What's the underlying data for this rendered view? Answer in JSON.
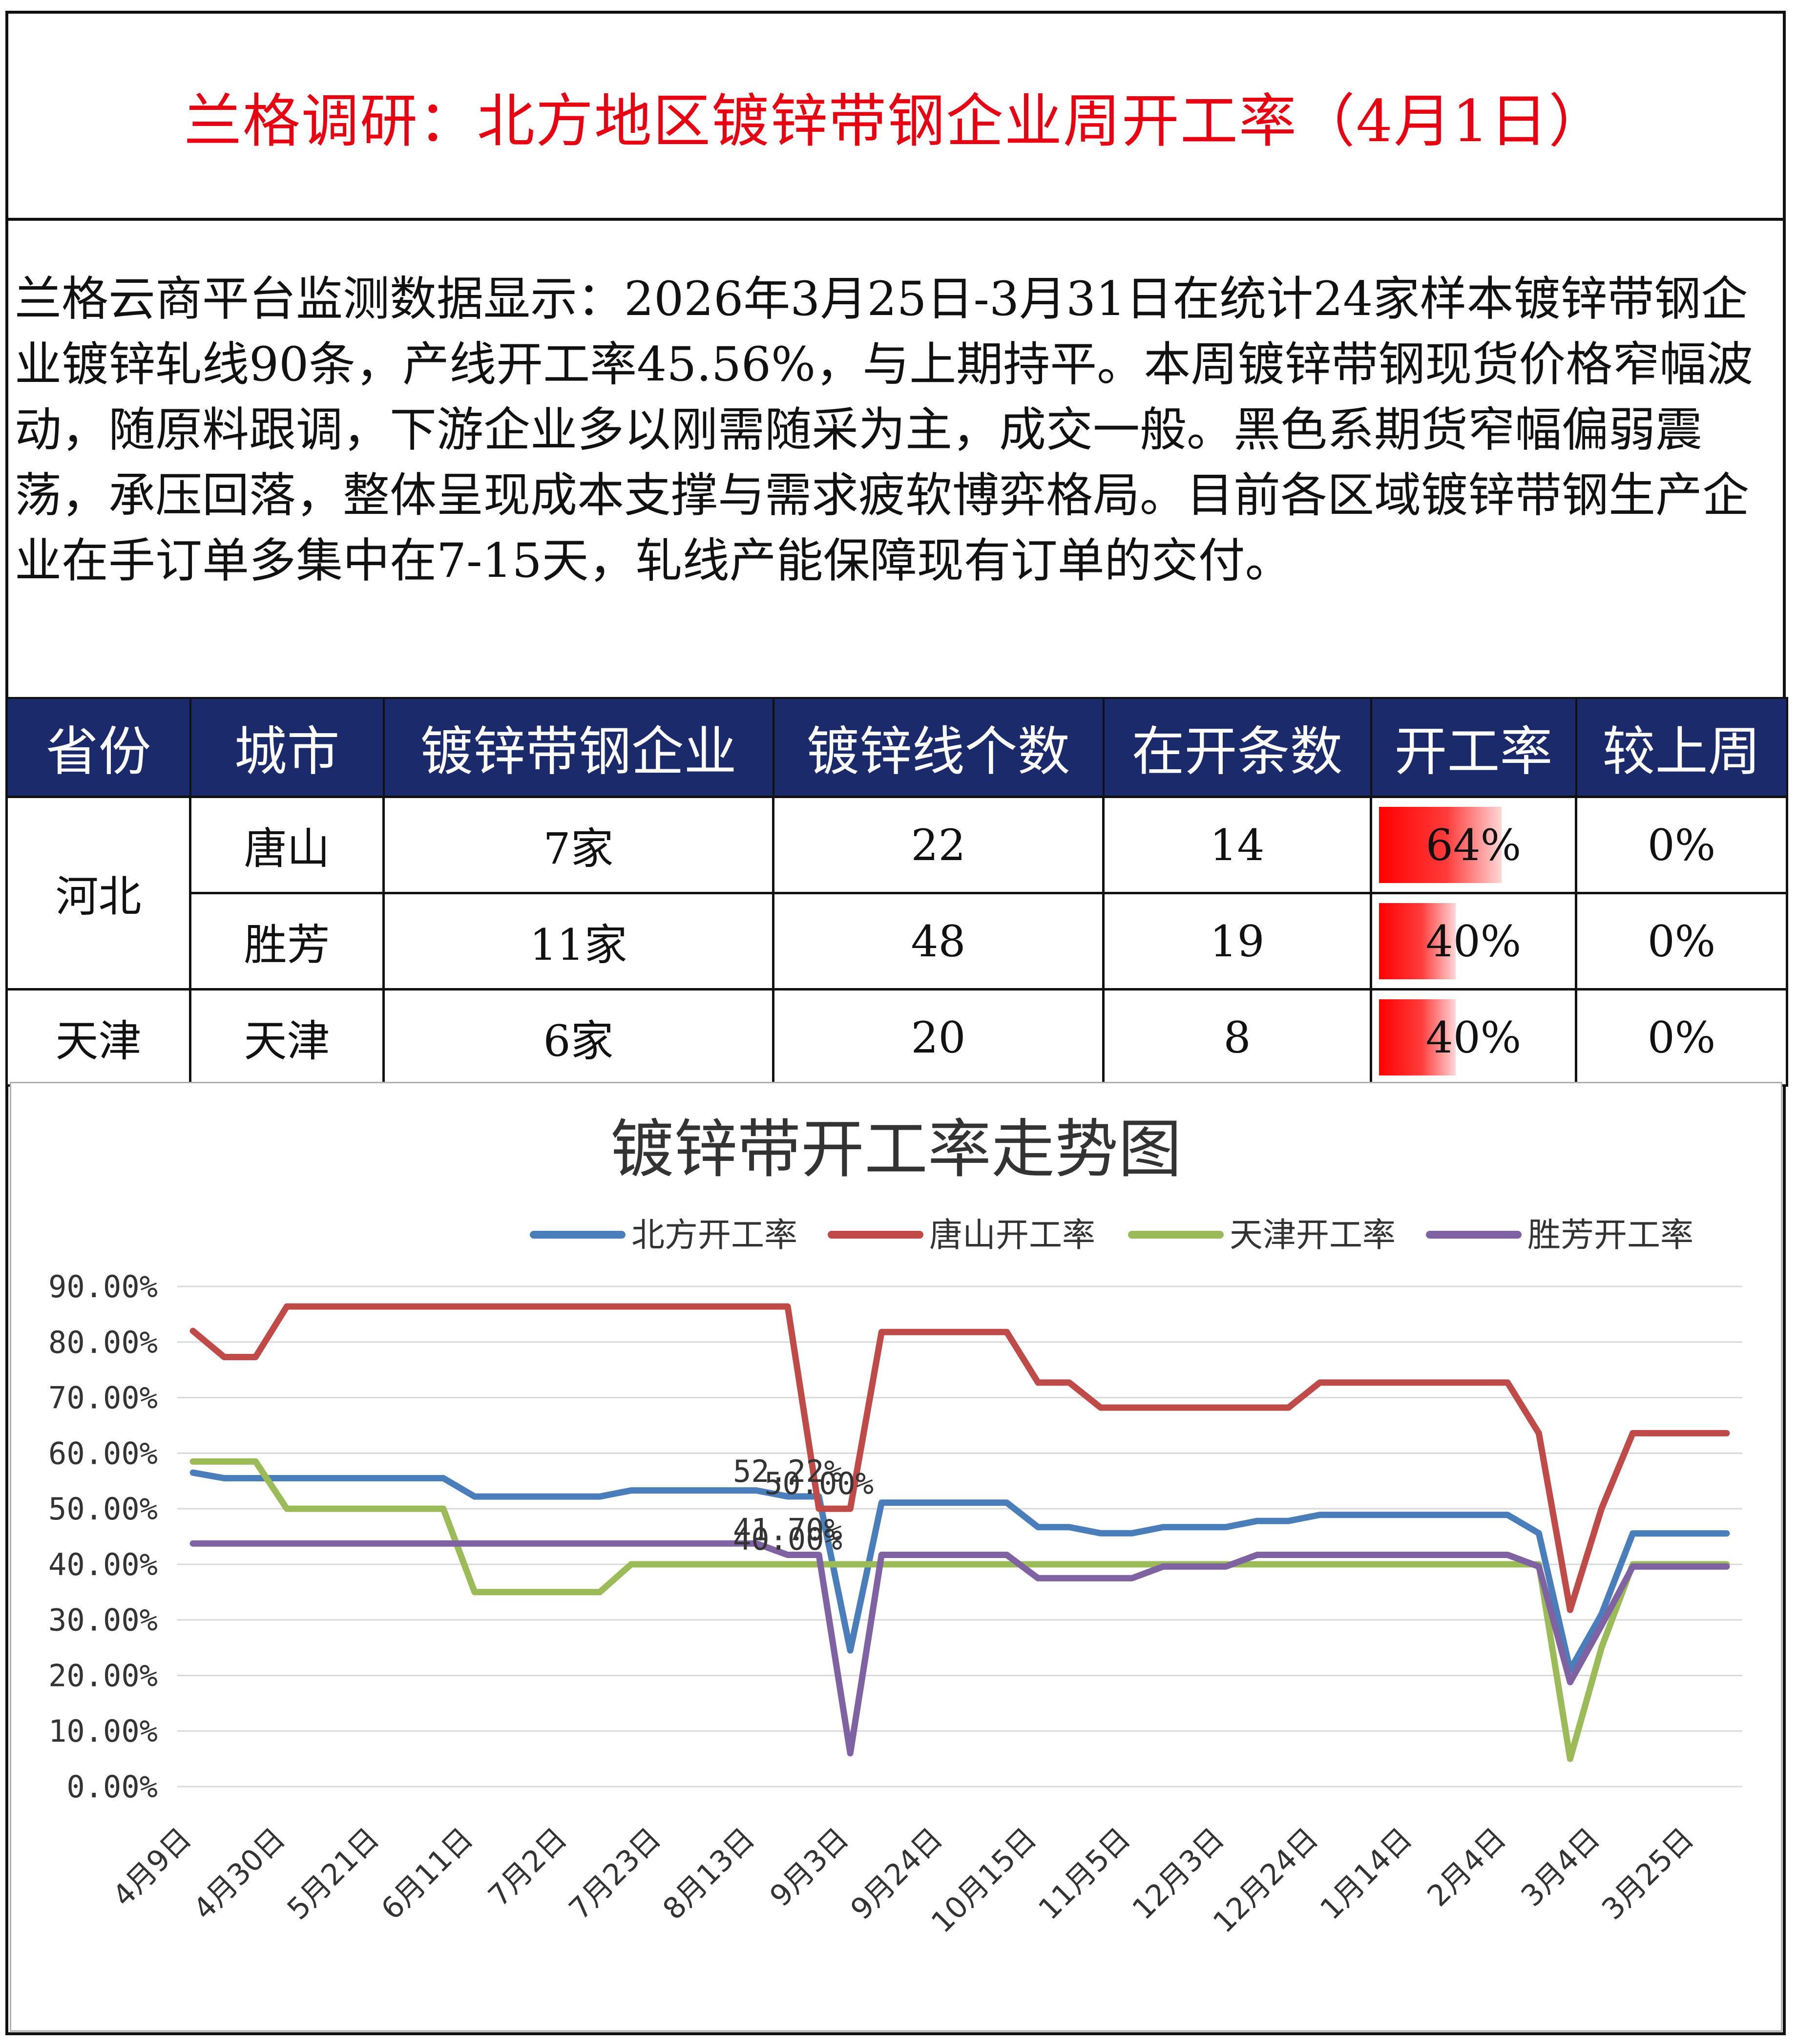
{
  "title": "兰格调研：北方地区镀锌带钢企业周开工率（4月1日）",
  "summary": "兰格云商平台监测数据显示：2026年3月25日-3月31日在统计24家样本镀锌带钢企业镀锌轧线90条，产线开工率45.56%，与上期持平。本周镀锌带钢现货价格窄幅波动，随原料跟调，下游企业多以刚需随采为主，成交一般。黑色系期货窄幅偏弱震荡，承压回落，整体呈现成本支撑与需求疲软博弈格局。目前各区域镀锌带钢生产企业在手订单多集中在7-15天，轧线产能保障现有订单的交付。",
  "table": {
    "headers": [
      "省份",
      "城市",
      "镀锌带钢企业",
      "镀锌线个数",
      "在开条数",
      "开工率",
      "较上周"
    ],
    "rows": [
      {
        "province": "河北",
        "city": "唐山",
        "enterprises": "7家",
        "lines": "22",
        "running": "14",
        "rate": "64%",
        "rate_value": 0.64,
        "change": "0%"
      },
      {
        "province": "",
        "city": "胜芳",
        "enterprises": "11家",
        "lines": "48",
        "running": "19",
        "rate": "40%",
        "rate_value": 0.4,
        "change": "0%"
      },
      {
        "province": "天津",
        "city": "天津",
        "enterprises": "6家",
        "lines": "20",
        "running": "8",
        "rate": "40%",
        "rate_value": 0.4,
        "change": "0%"
      }
    ],
    "bar_color": "#ff0000"
  },
  "chart_data": {
    "type": "line",
    "title": "镀锌带开工率走势图",
    "ylim": [
      0,
      90
    ],
    "ytick_labels": [
      "0.00%",
      "10.00%",
      "20.00%",
      "30.00%",
      "40.00%",
      "50.00%",
      "60.00%",
      "70.00%",
      "80.00%",
      "90.00%"
    ],
    "xtick_labels": [
      "4月9日",
      "4月30日",
      "5月21日",
      "6月11日",
      "7月2日",
      "7月23日",
      "8月13日",
      "9月3日",
      "9月24日",
      "10月15日",
      "11月5日",
      "12月3日",
      "12月24日",
      "1月14日",
      "2月4日",
      "3月4日",
      "3月25日"
    ],
    "xtick_positions": [
      0,
      3,
      6,
      9,
      12,
      15,
      18,
      21,
      24,
      27,
      30,
      33,
      36,
      39,
      42,
      45,
      48
    ],
    "x_count": 50,
    "legend_position": "top",
    "grid": true,
    "series": [
      {
        "name": "北方开工率",
        "color": "#4a7ebb",
        "values": [
          56.5,
          55.5,
          55.5,
          55.5,
          55.5,
          55.5,
          55.5,
          55.5,
          55.5,
          52.2,
          52.2,
          52.2,
          52.2,
          52.2,
          53.3,
          53.3,
          53.3,
          53.3,
          53.3,
          52.22,
          52.22,
          24.5,
          51.1,
          51.1,
          51.1,
          51.1,
          51.1,
          46.7,
          46.7,
          45.6,
          45.6,
          46.7,
          46.7,
          46.7,
          47.8,
          47.8,
          48.9,
          48.9,
          48.9,
          48.9,
          48.9,
          48.9,
          48.9,
          45.6,
          21,
          31,
          45.56,
          45.56,
          45.56,
          45.56
        ]
      },
      {
        "name": "唐山开工率",
        "color": "#be4b48",
        "values": [
          82,
          77.3,
          77.3,
          86.4,
          86.4,
          86.4,
          86.4,
          86.4,
          86.4,
          86.4,
          86.4,
          86.4,
          86.4,
          86.4,
          86.4,
          86.4,
          86.4,
          86.4,
          86.4,
          86.4,
          50,
          50,
          81.8,
          81.8,
          81.8,
          81.8,
          81.8,
          72.7,
          72.7,
          68.2,
          68.2,
          68.2,
          68.2,
          68.2,
          68.2,
          68.2,
          72.7,
          72.7,
          72.7,
          72.7,
          72.7,
          72.7,
          72.7,
          63.6,
          31.8,
          50,
          63.6,
          63.6,
          63.6,
          63.6
        ]
      },
      {
        "name": "天津开工率",
        "color": "#9bbb59",
        "values": [
          58.5,
          58.5,
          58.5,
          50,
          50,
          50,
          50,
          50,
          50,
          35,
          35,
          35,
          35,
          35,
          40,
          40,
          40,
          40,
          40,
          40,
          40,
          40,
          40,
          40,
          40,
          40,
          40,
          40,
          40,
          40,
          40,
          40,
          40,
          40,
          40,
          40,
          40,
          40,
          40,
          40,
          40,
          40,
          40,
          40,
          5,
          25,
          40,
          40,
          40,
          40
        ]
      },
      {
        "name": "胜芳开工率",
        "color": "#7f62a1",
        "values": [
          43.75,
          43.75,
          43.75,
          43.75,
          43.75,
          43.75,
          43.75,
          43.75,
          43.75,
          43.75,
          43.75,
          43.75,
          43.75,
          43.75,
          43.75,
          43.75,
          43.75,
          43.75,
          43.75,
          41.7,
          41.7,
          6,
          41.7,
          41.7,
          41.7,
          41.7,
          41.7,
          37.5,
          37.5,
          37.5,
          37.5,
          39.6,
          39.6,
          39.6,
          41.7,
          41.7,
          41.7,
          41.7,
          41.7,
          41.7,
          41.7,
          41.7,
          41.7,
          39.6,
          18.8,
          29,
          39.6,
          39.6,
          39.6,
          39.6
        ]
      }
    ],
    "data_labels": [
      {
        "series": 0,
        "index": 19,
        "text": "52.22%"
      },
      {
        "series": 1,
        "index": 20,
        "text": "50.00%"
      },
      {
        "series": 2,
        "index": 19,
        "text": "40.00%"
      },
      {
        "series": 3,
        "index": 19,
        "text": "41.70%"
      }
    ]
  }
}
